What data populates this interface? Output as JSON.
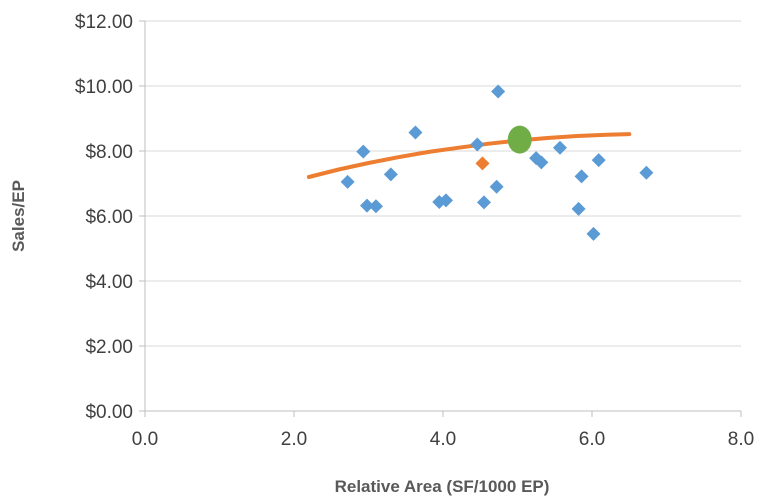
{
  "chart_data": {
    "type": "scatter",
    "title": "",
    "xlabel": "Relative Area (SF/1000 EP)",
    "ylabel": "Sales/EP",
    "xlim": [
      0,
      8
    ],
    "ylim": [
      0,
      12
    ],
    "x_ticks": [
      "0.0",
      "2.0",
      "4.0",
      "6.0",
      "8.0"
    ],
    "y_ticks": [
      "$0.00",
      "$2.00",
      "$4.00",
      "$6.00",
      "$8.00",
      "$10.00",
      "$12.00"
    ],
    "grid": "horizontal",
    "legend": "none",
    "series": [
      {
        "marker": "diamond",
        "color": "#5B9BD5",
        "points": [
          {
            "x": 2.72,
            "y": 7.05
          },
          {
            "x": 2.93,
            "y": 7.98
          },
          {
            "x": 2.98,
            "y": 6.32
          },
          {
            "x": 3.1,
            "y": 6.3
          },
          {
            "x": 3.3,
            "y": 7.28
          },
          {
            "x": 3.63,
            "y": 8.57
          },
          {
            "x": 3.95,
            "y": 6.43
          },
          {
            "x": 4.04,
            "y": 6.48
          },
          {
            "x": 4.46,
            "y": 8.2
          },
          {
            "x": 4.55,
            "y": 6.42
          },
          {
            "x": 4.72,
            "y": 6.9
          },
          {
            "x": 4.74,
            "y": 9.83
          },
          {
            "x": 5.25,
            "y": 7.78
          },
          {
            "x": 5.32,
            "y": 7.65
          },
          {
            "x": 5.57,
            "y": 8.1
          },
          {
            "x": 5.82,
            "y": 6.22
          },
          {
            "x": 5.86,
            "y": 7.22
          },
          {
            "x": 6.02,
            "y": 5.45
          },
          {
            "x": 6.09,
            "y": 7.72
          },
          {
            "x": 6.73,
            "y": 7.33
          }
        ]
      },
      {
        "marker": "diamond",
        "color": "#ED7D31",
        "points": [
          {
            "x": 4.53,
            "y": 7.62
          }
        ]
      },
      {
        "marker": "circle",
        "color": "#70AD47",
        "points": [
          {
            "x": 5.03,
            "y": 8.35
          }
        ]
      },
      {
        "type": "line",
        "color": "#ED7D31",
        "points": [
          {
            "x": 2.2,
            "y": 7.2
          },
          {
            "x": 2.6,
            "y": 7.43
          },
          {
            "x": 3.0,
            "y": 7.63
          },
          {
            "x": 3.4,
            "y": 7.81
          },
          {
            "x": 3.8,
            "y": 7.97
          },
          {
            "x": 4.2,
            "y": 8.1
          },
          {
            "x": 4.6,
            "y": 8.22
          },
          {
            "x": 5.0,
            "y": 8.32
          },
          {
            "x": 5.4,
            "y": 8.4
          },
          {
            "x": 5.8,
            "y": 8.46
          },
          {
            "x": 6.2,
            "y": 8.5
          },
          {
            "x": 6.5,
            "y": 8.52
          }
        ]
      }
    ]
  }
}
